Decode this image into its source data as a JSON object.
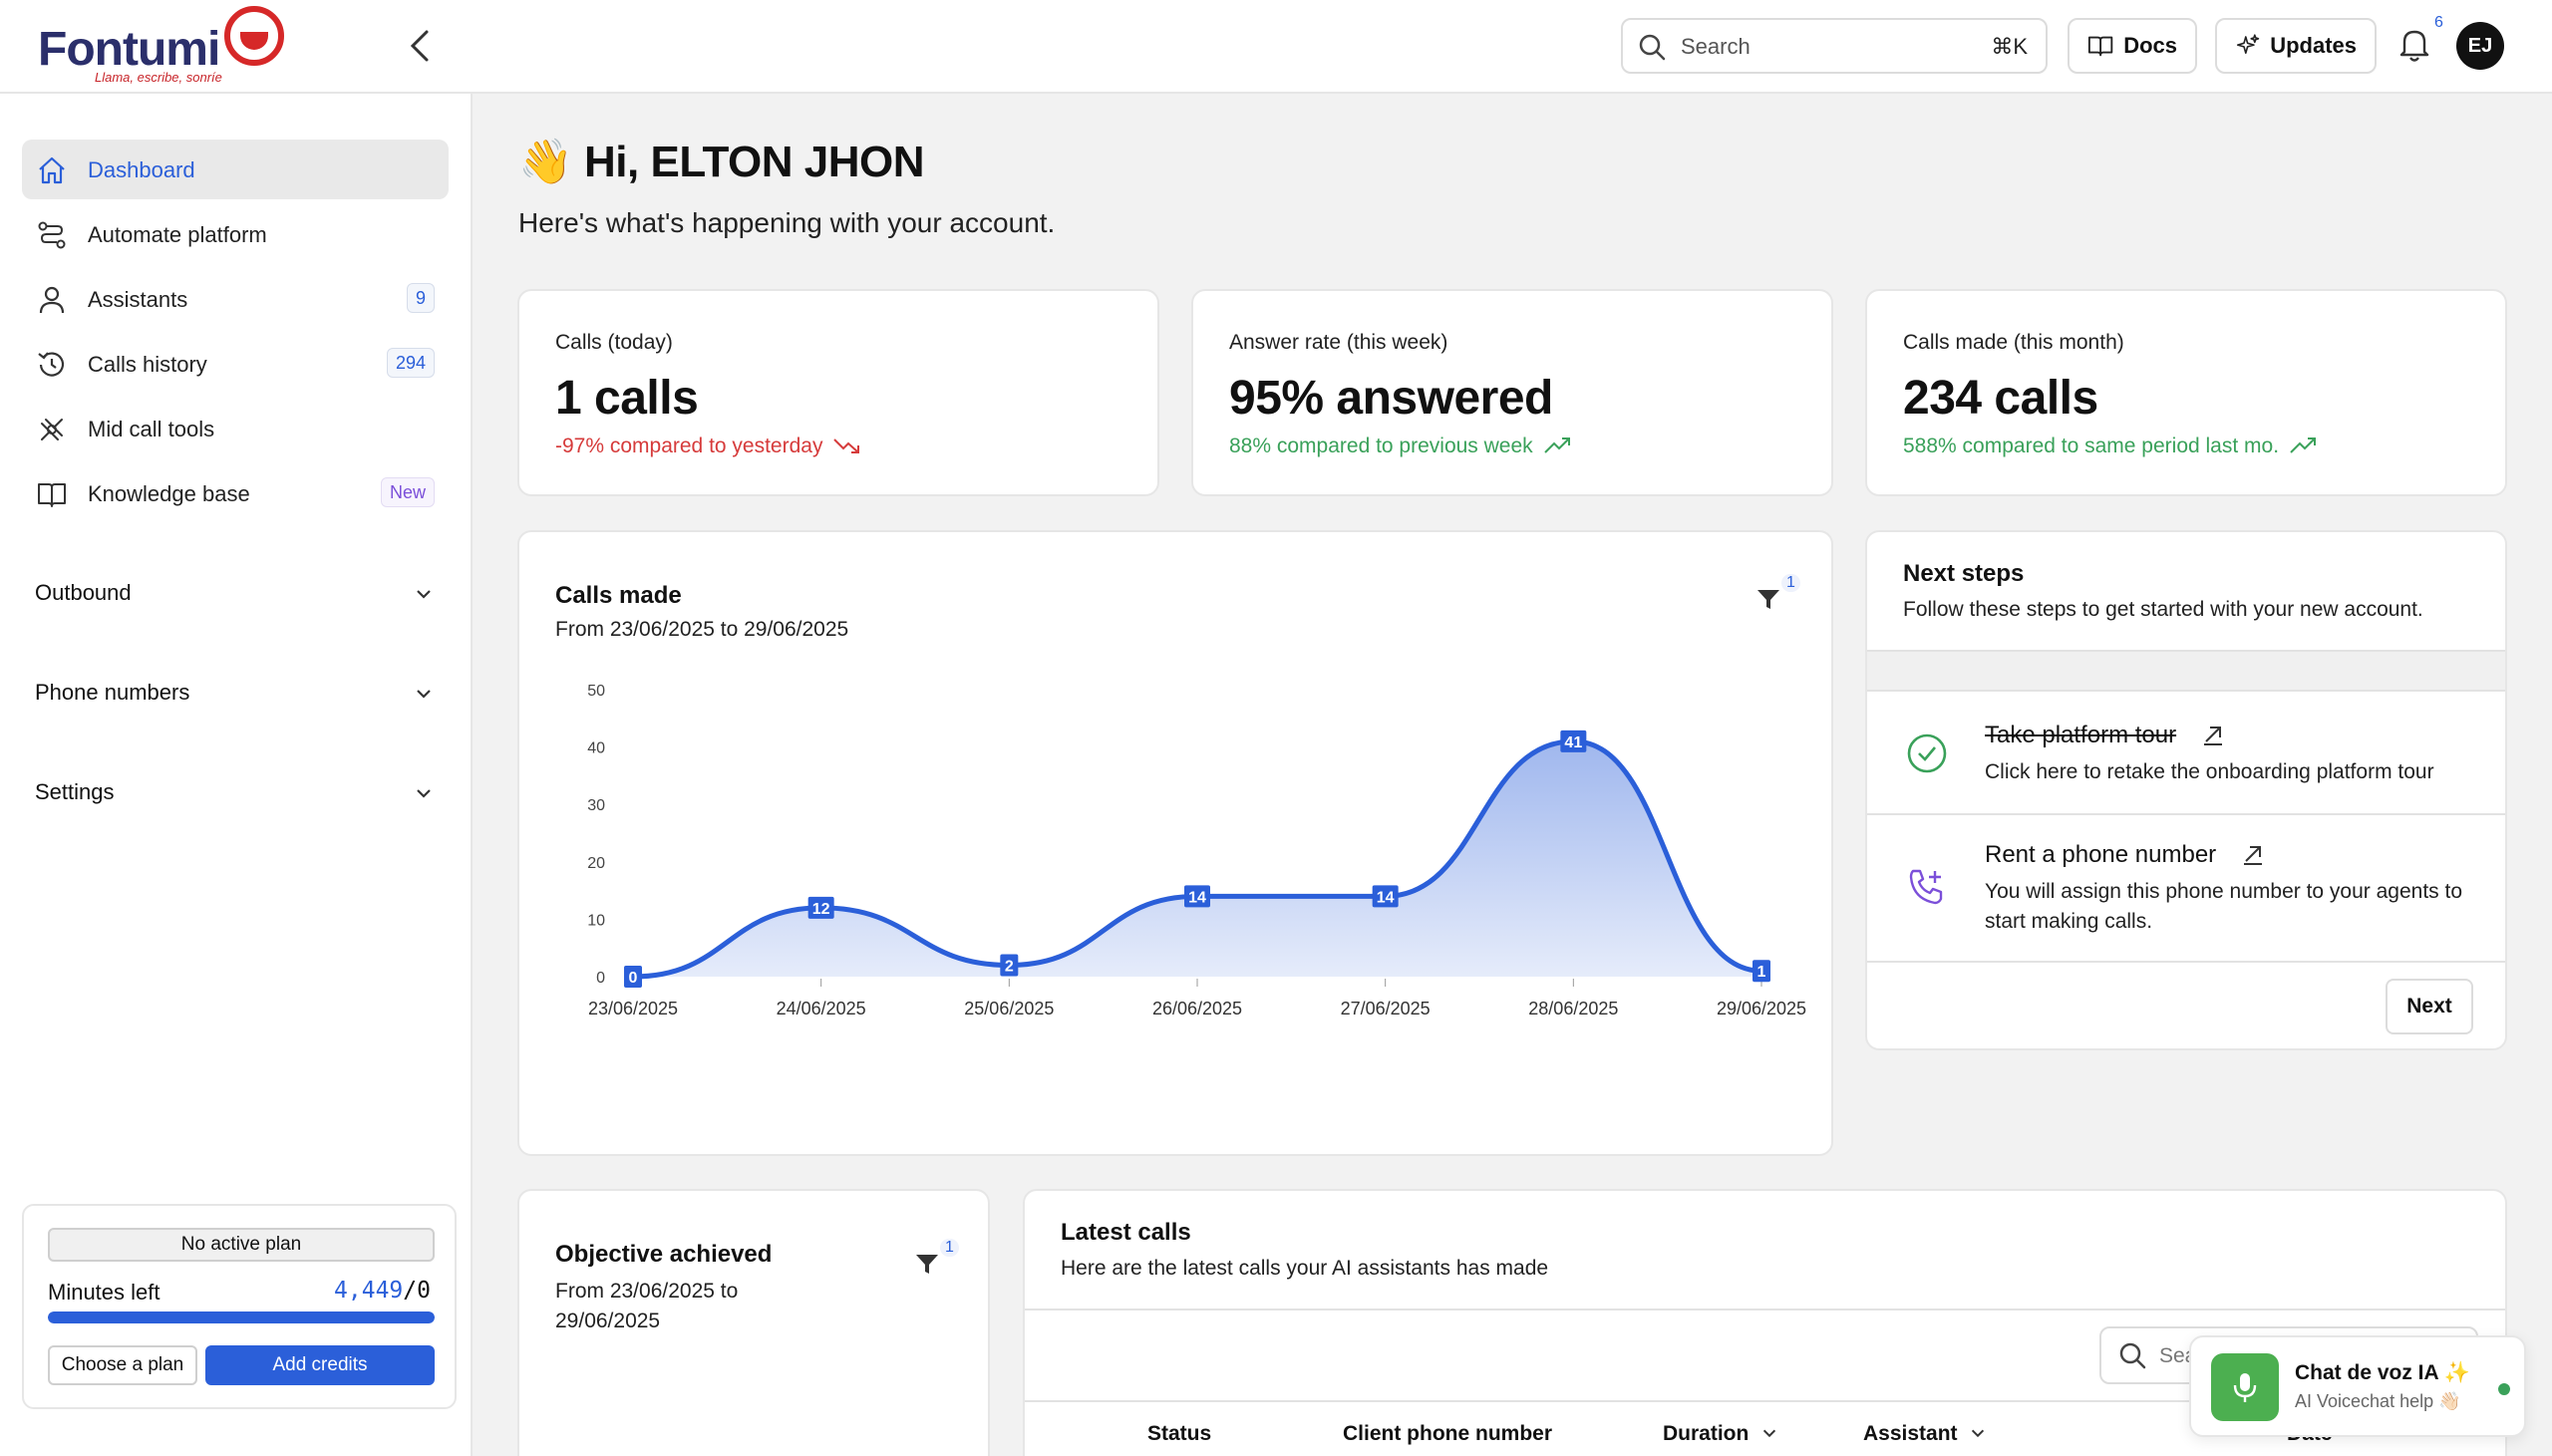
{
  "brand": {
    "name": "Fontumi",
    "tagline": "Llama, escribe, sonríe"
  },
  "topbar": {
    "search_placeholder": "Search",
    "search_shortcut": "⌘K",
    "docs_label": "Docs",
    "updates_label": "Updates",
    "notifications_count": "6",
    "avatar_initials": "EJ"
  },
  "sidebar": {
    "items": [
      {
        "label": "Dashboard",
        "icon": "home-icon"
      },
      {
        "label": "Automate platform",
        "icon": "workflow-icon"
      },
      {
        "label": "Assistants",
        "icon": "user-icon",
        "badge": "9"
      },
      {
        "label": "Calls history",
        "icon": "history-icon",
        "badge": "294"
      },
      {
        "label": "Mid call tools",
        "icon": "tools-icon"
      },
      {
        "label": "Knowledge base",
        "icon": "book-icon",
        "badge": "New"
      }
    ],
    "sections": [
      "Outbound",
      "Phone numbers",
      "Settings"
    ],
    "plan": {
      "status": "No active plan",
      "minutes_label": "Minutes left",
      "minutes_value": "4,449",
      "minutes_total": "/0",
      "progress": 1.0,
      "choose_plan": "Choose a plan",
      "add_credits": "Add credits"
    }
  },
  "greeting": {
    "emoji": "👋",
    "title": "Hi, ELTON JHON",
    "subtitle": "Here's what's happening with your account."
  },
  "stats": [
    {
      "label": "Calls (today)",
      "value": "1 calls",
      "change": "-97% compared to yesterday",
      "trend": "down",
      "color": "#d63b3b"
    },
    {
      "label": "Answer rate (this week)",
      "value": "95% answered",
      "change": "88% compared to previous week",
      "trend": "up",
      "color": "#3aa15a"
    },
    {
      "label": "Calls made (this month)",
      "value": "234 calls",
      "change": "588% compared to same period last mo.",
      "trend": "up",
      "color": "#3aa15a"
    }
  ],
  "calls_made": {
    "title": "Calls made",
    "range": "From 23/06/2025 to 29/06/2025",
    "filter_count": "1"
  },
  "chart_data": {
    "type": "area",
    "categories": [
      "23/06/2025",
      "24/06/2025",
      "25/06/2025",
      "26/06/2025",
      "27/06/2025",
      "28/06/2025",
      "29/06/2025"
    ],
    "values": [
      0,
      12,
      2,
      14,
      14,
      41,
      1
    ],
    "yticks": [
      0,
      10,
      20,
      30,
      40,
      50
    ],
    "ylim": [
      0,
      50
    ],
    "color": "#2b5fd9"
  },
  "next_steps": {
    "title": "Next steps",
    "subtitle": "Follow these steps to get started with your new account.",
    "steps": [
      {
        "title": "Take platform tour",
        "desc": "Click here to retake the onboarding platform tour",
        "done": true
      },
      {
        "title": "Rent a phone number",
        "desc": "You will assign this phone number to your agents to start making calls.",
        "done": false
      }
    ],
    "next_label": "Next"
  },
  "objective": {
    "title": "Objective achieved",
    "range": "From 23/06/2025 to 29/06/2025",
    "filter_count": "1"
  },
  "latest_calls": {
    "title": "Latest calls",
    "subtitle": "Here are the latest calls your AI assistants has made",
    "search_placeholder": "Sea",
    "columns": [
      "Status",
      "Client phone number",
      "Duration",
      "Assistant",
      "Date"
    ]
  },
  "chat_widget": {
    "title": "Chat de voz IA ✨",
    "subtitle": "AI Voicechat help 👋🏻"
  }
}
